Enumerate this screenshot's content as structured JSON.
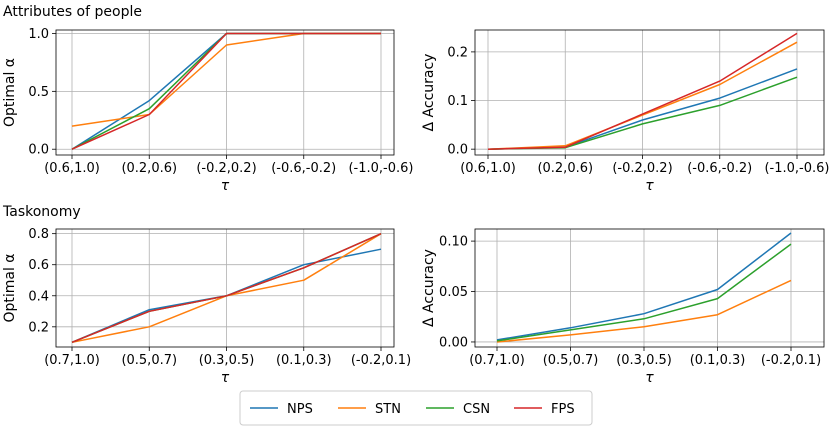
{
  "sections": [
    {
      "title": "Attributes of people"
    },
    {
      "title": "Taskonomy"
    }
  ],
  "legend": {
    "entries": [
      {
        "name": "NPS",
        "color": "#1f77b4"
      },
      {
        "name": "STN",
        "color": "#ff7f0e"
      },
      {
        "name": "CSN",
        "color": "#2ca02c"
      },
      {
        "name": "FPS",
        "color": "#d62728"
      }
    ]
  },
  "chart_data": [
    {
      "type": "line",
      "section": "Attributes of people",
      "xlabel": "τ",
      "ylabel": "Optimal α",
      "categories": [
        "(0.6,1.0)",
        "(0.2,0.6)",
        "(-0.2,0.2)",
        "(-0.6,-0.2)",
        "(-1.0,-0.6)"
      ],
      "ylim": [
        -0.05,
        1.03
      ],
      "yticks": [
        0.0,
        0.5,
        1.0
      ],
      "ytick_labels": [
        "0.0",
        "0.5",
        "1.0"
      ],
      "grid": true,
      "series": [
        {
          "name": "NPS",
          "values": [
            0.0,
            0.42,
            1.0,
            1.0,
            1.0
          ]
        },
        {
          "name": "STN",
          "values": [
            0.2,
            0.3,
            0.9,
            1.0,
            1.0
          ]
        },
        {
          "name": "CSN",
          "values": [
            0.0,
            0.35,
            1.0,
            1.0,
            1.0
          ]
        },
        {
          "name": "FPS",
          "values": [
            0.0,
            0.3,
            1.0,
            1.0,
            1.0
          ]
        }
      ]
    },
    {
      "type": "line",
      "section": "Attributes of people",
      "xlabel": "τ",
      "ylabel": "Δ Accuracy",
      "categories": [
        "(0.6,1.0)",
        "(0.2,0.6)",
        "(-0.2,0.2)",
        "(-0.6,-0.2)",
        "(-1.0,-0.6)"
      ],
      "ylim": [
        -0.012,
        0.245
      ],
      "yticks": [
        0.0,
        0.1,
        0.2
      ],
      "ytick_labels": [
        "0.0",
        "0.1",
        "0.2"
      ],
      "grid": true,
      "series": [
        {
          "name": "NPS",
          "values": [
            0.0,
            0.004,
            0.06,
            0.105,
            0.165
          ]
        },
        {
          "name": "STN",
          "values": [
            0.0,
            0.007,
            0.07,
            0.133,
            0.22
          ]
        },
        {
          "name": "CSN",
          "values": [
            0.0,
            0.003,
            0.052,
            0.09,
            0.148
          ]
        },
        {
          "name": "FPS",
          "values": [
            0.0,
            0.004,
            0.072,
            0.14,
            0.238
          ]
        }
      ]
    },
    {
      "type": "line",
      "section": "Taskonomy",
      "xlabel": "τ",
      "ylabel": "Optimal α",
      "categories": [
        "(0.7,1.0)",
        "(0.5,0.7)",
        "(0.3,0.5)",
        "(0.1,0.3)",
        "(-0.2,0.1)"
      ],
      "ylim": [
        0.07,
        0.83
      ],
      "yticks": [
        0.2,
        0.4,
        0.6,
        0.8
      ],
      "ytick_labels": [
        "0.2",
        "0.4",
        "0.6",
        "0.8"
      ],
      "grid": true,
      "series": [
        {
          "name": "NPS",
          "values": [
            0.1,
            0.31,
            0.4,
            0.6,
            0.7
          ]
        },
        {
          "name": "STN",
          "values": [
            0.1,
            0.2,
            0.4,
            0.5,
            0.8
          ]
        },
        {
          "name": "CSN",
          "values": [
            0.1,
            0.3,
            0.4,
            0.58,
            0.8
          ]
        },
        {
          "name": "FPS",
          "values": [
            0.1,
            0.3,
            0.4,
            0.58,
            0.8
          ]
        }
      ]
    },
    {
      "type": "line",
      "section": "Taskonomy",
      "xlabel": "τ",
      "ylabel": "Δ Accuracy",
      "categories": [
        "(0.7,1.0)",
        "(0.5,0.7)",
        "(0.3,0.5)",
        "(0.1,0.3)",
        "(-0.2,0.1)"
      ],
      "ylim": [
        -0.005,
        0.112
      ],
      "yticks": [
        0.0,
        0.05,
        0.1
      ],
      "ytick_labels": [
        "0.00",
        "0.05",
        "0.10"
      ],
      "grid": true,
      "series": [
        {
          "name": "NPS",
          "values": [
            0.002,
            0.014,
            0.028,
            0.052,
            0.108
          ]
        },
        {
          "name": "STN",
          "values": [
            0.0,
            0.007,
            0.015,
            0.027,
            0.061
          ]
        },
        {
          "name": "CSN",
          "values": [
            0.001,
            0.012,
            0.023,
            0.043,
            0.097
          ]
        }
      ]
    }
  ]
}
